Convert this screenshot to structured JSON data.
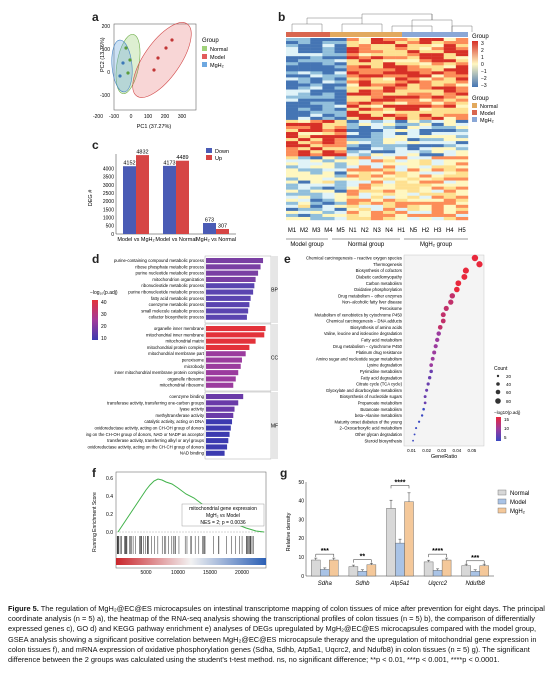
{
  "panels": {
    "a": {
      "label": "a",
      "xlabel": "PC1 (37.27%)",
      "ylabel": "PC2 (13.76%)",
      "xticks": [
        "-200",
        "-100",
        "0",
        "100",
        "200",
        "300"
      ],
      "yticks": [
        "200",
        "100",
        "0",
        "-100"
      ],
      "legend_title": "Group",
      "legend": [
        {
          "name": "Normal",
          "color": "#9fd17a"
        },
        {
          "name": "Model",
          "color": "#e25b5b"
        },
        {
          "name": "MgH₂",
          "color": "#6ea8e0"
        }
      ]
    },
    "b": {
      "label": "b",
      "legend_title": "Group",
      "scale_labels": [
        "3",
        "2",
        "1",
        "0",
        "−1",
        "−2",
        "−3"
      ],
      "group_legend_title": "Group",
      "group_legend": [
        {
          "name": "Normal",
          "color": "#e2a95e"
        },
        {
          "name": "Model",
          "color": "#d9664f"
        },
        {
          "name": "MgH₂",
          "color": "#8aa7d6"
        }
      ],
      "samples": [
        "M1",
        "M2",
        "M3",
        "M4",
        "M5",
        "N1",
        "N2",
        "N3",
        "N4",
        "H1",
        "N5",
        "H2",
        "H3",
        "H4",
        "H5"
      ],
      "group_labels": [
        "Model group",
        "Normal group",
        "MgH₂ group"
      ]
    },
    "c": {
      "label": "c",
      "ylabel": "DEG #",
      "yticks": [
        "0",
        "500",
        "1000",
        "1500",
        "2000",
        "2500",
        "3000",
        "3500",
        "4000"
      ],
      "legend": [
        {
          "name": "Down",
          "color": "#4a5bb5"
        },
        {
          "name": "Up",
          "color": "#d64545"
        }
      ]
    },
    "d": {
      "label": "d",
      "legend_title": "−log₁₀(p.adj)",
      "legend_ticks": [
        "40",
        "30",
        "20",
        "10"
      ],
      "sections": [
        "BP",
        "CC",
        "MF"
      ],
      "bp_terms": [
        "purine-containing compound metabolic process",
        "ribose phosphate metabolic process",
        "purine nucleotide metabolic process",
        "mitochondrion organization",
        "ribonucleotide metabolic process",
        "purine ribonucleotide metabolic process",
        "fatty acid metabolic process",
        "coenzyme metabolic process",
        "small molecule catabolic process",
        "cofactor biosynthetic process"
      ],
      "cc_terms": [
        "organelle inner membrane",
        "mitochondrial inner membrane",
        "mitochondrial matrix",
        "mitochondrial protein complex",
        "mitochondrial membrane part",
        "peroxisome",
        "microbody",
        "inner mitochondrial membrane protein complex",
        "organelle ribosome",
        "mitochondrial ribosome"
      ],
      "mf_terms": [
        "coenzyme binding",
        "transferase activity, transferring one-carbon groups",
        "lyase activity",
        "methyltransferase activity",
        "catalytic activity, acting on DNA",
        "oxidoreductase activity, acting on CH-OH group of donors",
        "oxidoreductase activity, acting on the CH-OH group of donors, NAD or NADP as acceptor",
        "transferase activity, transferring alkyl or aryl groups",
        "oxidoreductase activity, acting on the CH-CH group of donors",
        "NAD binding"
      ],
      "bp_values": [
        0.92,
        0.88,
        0.84,
        0.8,
        0.78,
        0.76,
        0.72,
        0.7,
        0.68,
        0.66
      ],
      "cc_values": [
        0.96,
        0.94,
        0.8,
        0.7,
        0.64,
        0.58,
        0.56,
        0.52,
        0.48,
        0.44
      ],
      "mf_values": [
        0.6,
        0.52,
        0.46,
        0.44,
        0.42,
        0.4,
        0.38,
        0.36,
        0.34,
        0.3
      ]
    },
    "e": {
      "label": "e",
      "xlabel": "GeneRatio",
      "xticks": [
        "0.01",
        "0.02",
        "0.03",
        "0.04",
        "0.05"
      ],
      "count_title": "Count",
      "count_values": [
        "20",
        "40",
        "60",
        "80"
      ],
      "padj_title": "−log10(p.adj)",
      "padj_ticks": [
        "15",
        "10",
        "5"
      ],
      "terms": [
        "Chemical carcinogenesis − reactive oxygen species",
        "Thermogenesis",
        "Biosynthesis of cofactors",
        "Diabetic cardiomyopathy",
        "Carbon metabolism",
        "Oxidative phosphorylation",
        "Drug metabolism − other enzymes",
        "Non−alcoholic fatty liver disease",
        "Peroxisome",
        "Metabolism of xenobiotics by cytochrome P450",
        "Chemical carcinogenesis − DNA adducts",
        "Biosynthesis of amino acids",
        "Valine, leucine and isoleucine degradation",
        "Fatty acid metabolism",
        "Drug metabolism − cytochrome P450",
        "Platinum drug resistance",
        "Amino sugar and nucleotide sugar metabolism",
        "Lysine degradation",
        "Pyrimidine metabolism",
        "Fatty acid degradation",
        "Citrate cycle (TCA cycle)",
        "Glyoxylate and dicarboxylate metabolism",
        "Biosynthesis of nucleotide sugars",
        "Propanoate metabolism",
        "Butanoate metabolism",
        "beta−Alanine metabolism",
        "Maturity onset diabetes of the young",
        "2−Oxocarboxylic acid metabolism",
        "Other glycan degradation",
        "Steroid biosynthesis"
      ],
      "ratios": [
        0.052,
        0.055,
        0.046,
        0.045,
        0.041,
        0.04,
        0.037,
        0.036,
        0.033,
        0.031,
        0.031,
        0.029,
        0.028,
        0.027,
        0.026,
        0.025,
        0.024,
        0.023,
        0.023,
        0.022,
        0.021,
        0.02,
        0.019,
        0.019,
        0.018,
        0.017,
        0.015,
        0.013,
        0.012,
        0.011
      ]
    },
    "f": {
      "label": "f",
      "ylabel": "Running Enrichment Score",
      "yticks": [
        "0.6",
        "0.4",
        "0.2",
        "0.0"
      ],
      "xticks": [
        "5000",
        "10000",
        "15000",
        "20000"
      ],
      "box_title": "mitochondrial gene expression",
      "box_line2": "MgH₂ vs Model",
      "box_line3": "NES = 2; p = 0.0036"
    },
    "g": {
      "label": "g",
      "ylabel": "Relative density",
      "yticks": [
        "0",
        "10",
        "20",
        "30",
        "40",
        "50"
      ],
      "legend": [
        {
          "name": "Normal",
          "color": "#d8d8d8"
        },
        {
          "name": "Model",
          "color": "#a9c3e6"
        },
        {
          "name": "MgH₂",
          "color": "#f4c89a"
        }
      ],
      "genes": [
        "Sdha",
        "Sdhb",
        "Atp5a1",
        "Uqcrc2",
        "Ndufb8"
      ],
      "significance": [
        "***",
        "**",
        "****",
        "****",
        "***"
      ]
    }
  },
  "chart_data": [
    {
      "type": "bar",
      "categories": [
        "Model vs MgH₂",
        "Model vs Normal",
        "MgH₂ vs Normal"
      ],
      "series": [
        {
          "name": "Down",
          "values": [
            4152,
            4173,
            673
          ]
        },
        {
          "name": "Up",
          "values": [
            4832,
            4489,
            307
          ]
        }
      ],
      "ylabel": "DEG #",
      "ylim": [
        0,
        4900
      ]
    },
    {
      "type": "bar",
      "categories": [
        "Sdha",
        "Sdhb",
        "Atp5a1",
        "Uqcrc2",
        "Ndufb8"
      ],
      "series": [
        {
          "name": "Normal",
          "values": [
            8.5,
            5.0,
            36.0,
            7.5,
            5.5
          ]
        },
        {
          "name": "Model",
          "values": [
            3.5,
            2.5,
            17.5,
            3.0,
            2.5
          ]
        },
        {
          "name": "MgH₂",
          "values": [
            8.5,
            6.0,
            39.5,
            8.5,
            5.5
          ]
        }
      ],
      "ylabel": "Relative density",
      "ylim": [
        0,
        50
      ]
    }
  ],
  "caption": {
    "title": "Figure 5.",
    "text": "The regulation of MgH₂@EC@ES microcapsules on intestinal transcriptome mapping of colon tissues of mice after prevention for eight days. The principal coordinate analysis (n = 5) a), the heatmap of the RNA-seq analysis showing the transcriptional profiles of colon tissues (n = 5) b), the comparison of differentially expressed genes c), GO d) and KEGG pathway enrichment e) analyses of DEGs upregulated by MgH₂@EC@ES microcapsules compared with the model group, GSEA analysis showing a significant positive correlation between MgH₂@EC@ES microcapsule therapy and the upregulation of mitochondrial gene expression in colon tissues f), and mRNA expression of oxidative phosphorylation genes (Sdha, Sdhb, Atp5a1, Uqcrc2, and Ndufb8) in colon tissues (n = 5) g). The significant difference between the 2 groups was calculated using the student's t-test method. ns, no significant difference; **p < 0.01, ***p < 0.001, ****p < 0.0001."
  }
}
